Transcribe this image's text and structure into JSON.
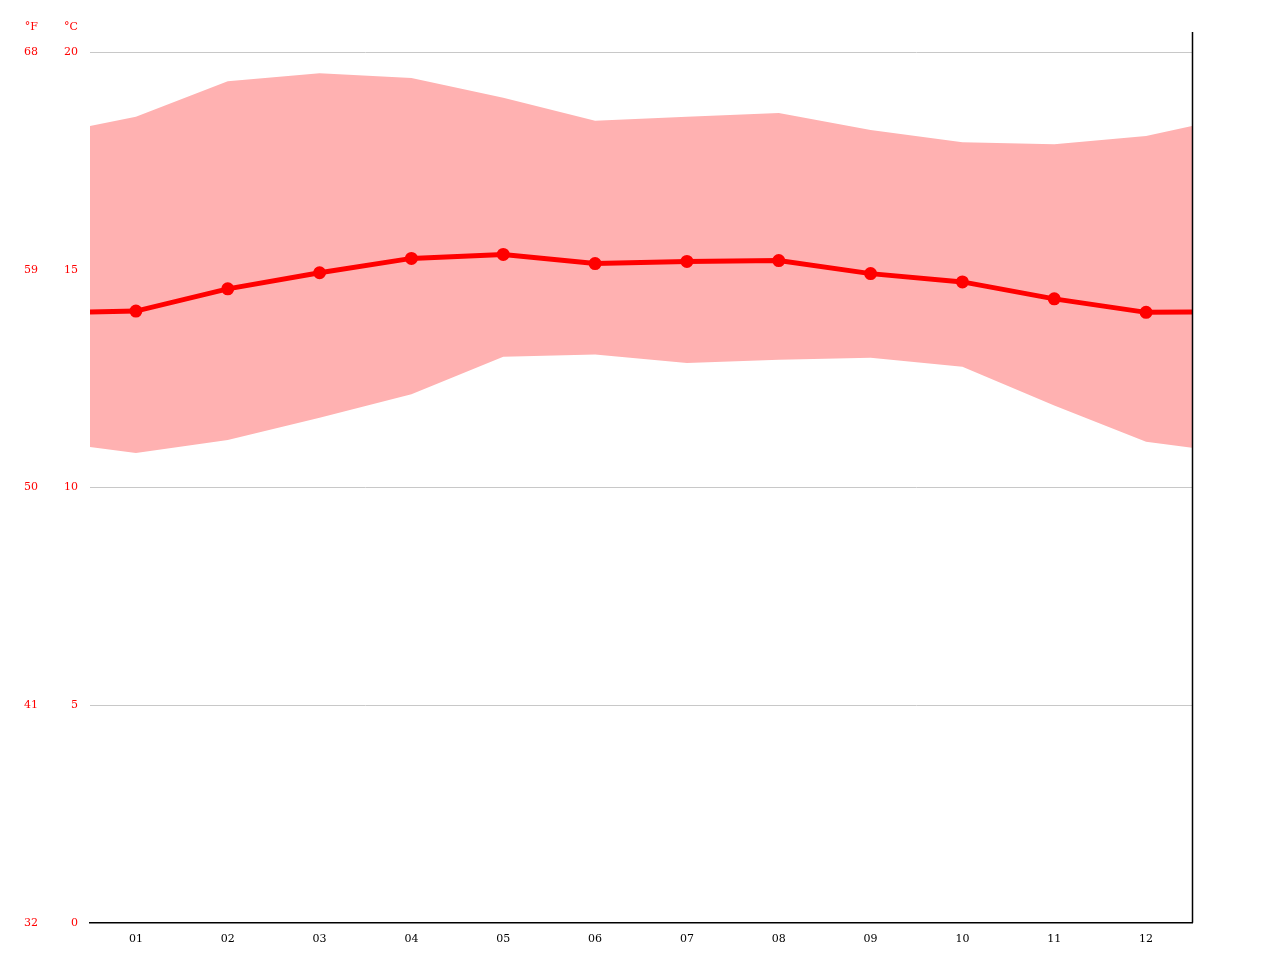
{
  "chart_data": {
    "type": "line",
    "y_label": "°C",
    "y2_label": "°F",
    "x": [
      0.5,
      1,
      2,
      3,
      4,
      5,
      6,
      7,
      8,
      9,
      10,
      11,
      12,
      12.5
    ],
    "xlim": [
      0.5,
      12.5
    ],
    "xticks": [
      {
        "value": 1,
        "label": "01"
      },
      {
        "value": 2,
        "label": "02"
      },
      {
        "value": 3,
        "label": "03"
      },
      {
        "value": 4,
        "label": "04"
      },
      {
        "value": 5,
        "label": "05"
      },
      {
        "value": 6,
        "label": "06"
      },
      {
        "value": 7,
        "label": "07"
      },
      {
        "value": 8,
        "label": "08"
      },
      {
        "value": 9,
        "label": "09"
      },
      {
        "value": 10,
        "label": "10"
      },
      {
        "value": 11,
        "label": "11"
      },
      {
        "value": 12,
        "label": "12"
      }
    ],
    "ylim": [
      0,
      20
    ],
    "yticks": [
      0,
      5,
      10,
      15,
      20
    ],
    "y2lim": [
      32,
      68
    ],
    "y2ticks": [
      32,
      41,
      50,
      59,
      68
    ],
    "grid": true,
    "series": [
      {
        "type": "area",
        "color": "#ffb1b1",
        "values": [
          18.3,
          18.51,
          19.33,
          19.51,
          19.4,
          18.95,
          18.42,
          18.51,
          18.6,
          18.21,
          17.93,
          17.88,
          18.07,
          18.3
        ],
        "lower": [
          10.93,
          10.79,
          11.09,
          11.6,
          12.14,
          13.0,
          13.05,
          12.86,
          12.93,
          12.98,
          12.77,
          11.88,
          11.05,
          10.91
        ]
      },
      {
        "type": "line",
        "color": "#ff0000",
        "marker": "circle",
        "values": [
          14.03,
          14.05,
          14.56,
          14.93,
          15.26,
          15.35,
          15.14,
          15.19,
          15.21,
          14.91,
          14.72,
          14.33,
          14.02,
          14.03
        ]
      }
    ]
  }
}
